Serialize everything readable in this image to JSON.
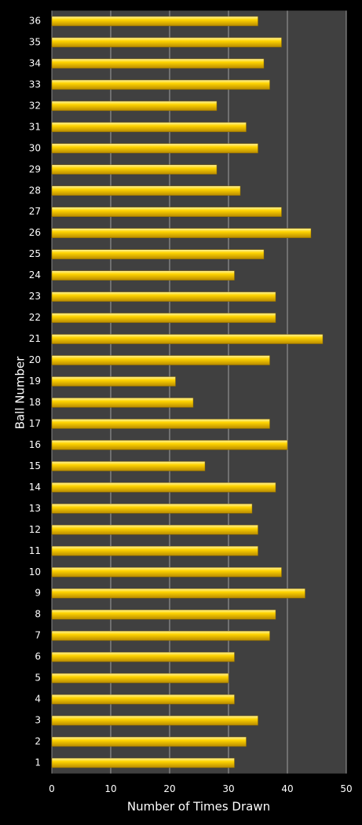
{
  "chart_data": {
    "type": "hbar",
    "x_label": "Number of Times Drawn",
    "y_label": "Ball Number",
    "categories": [
      "1",
      "2",
      "3",
      "4",
      "5",
      "6",
      "7",
      "8",
      "9",
      "10",
      "11",
      "12",
      "13",
      "14",
      "15",
      "16",
      "17",
      "18",
      "19",
      "20",
      "21",
      "22",
      "23",
      "24",
      "25",
      "26",
      "27",
      "28",
      "29",
      "30",
      "31",
      "32",
      "33",
      "34",
      "35",
      "36"
    ],
    "values": [
      31,
      33,
      35,
      31,
      30,
      31,
      37,
      38,
      43,
      39,
      35,
      35,
      34,
      38,
      26,
      40,
      37,
      24,
      21,
      37,
      46,
      38,
      38,
      31,
      36,
      44,
      39,
      32,
      28,
      35,
      33,
      28,
      37,
      36,
      39,
      35
    ],
    "color": "#f5c400",
    "xlim": [
      0,
      50
    ],
    "xticks": [
      0,
      10,
      20,
      30,
      40,
      50
    ],
    "grid": true
  }
}
